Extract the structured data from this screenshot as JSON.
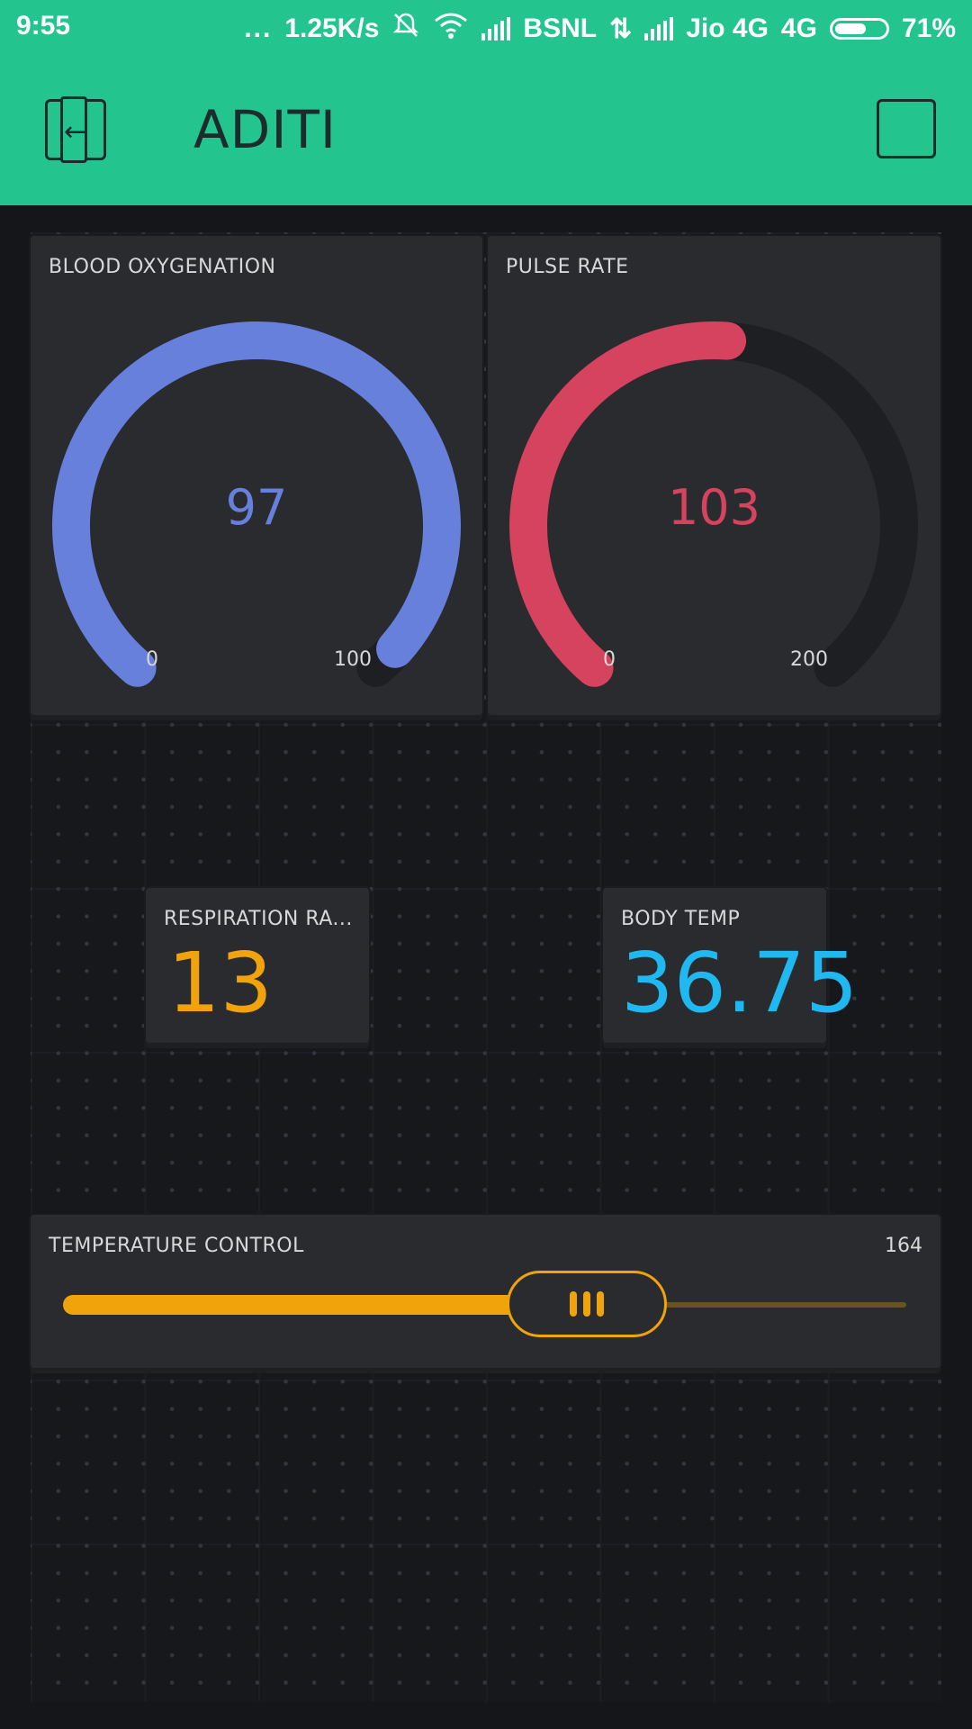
{
  "status_bar": {
    "time": "9:55",
    "dots": "...",
    "network_speed": "1.25K/s",
    "carrier_1": "BSNL",
    "carrier_2": "Jio 4G",
    "network_type": "4G",
    "battery_percent": "71%",
    "battery_level": 0.71
  },
  "header": {
    "title": "ADITI",
    "back_icon": "exit-app-icon",
    "right_icon": "square-icon"
  },
  "widgets": {
    "blood_oxygenation": {
      "label": "BLOOD OXYGENATION",
      "value": "97",
      "min": "0",
      "max": "100",
      "value_num": 97,
      "min_num": 0,
      "max_num": 100,
      "color": "#6780dc"
    },
    "pulse_rate": {
      "label": "PULSE RATE",
      "value": "103",
      "min": "0",
      "max": "200",
      "value_num": 103,
      "min_num": 0,
      "max_num": 200,
      "color": "#d6435e"
    },
    "respiration_rate": {
      "label": "RESPIRATION RA...",
      "value": "13",
      "color": "#f0a30a"
    },
    "body_temp": {
      "label": "BODY TEMP",
      "value": "36.75",
      "color": "#1fb8f0"
    },
    "temperature_control": {
      "label": "TEMPERATURE CONTROL",
      "value": "164",
      "fraction": 0.62,
      "color": "#f0a30a"
    }
  }
}
